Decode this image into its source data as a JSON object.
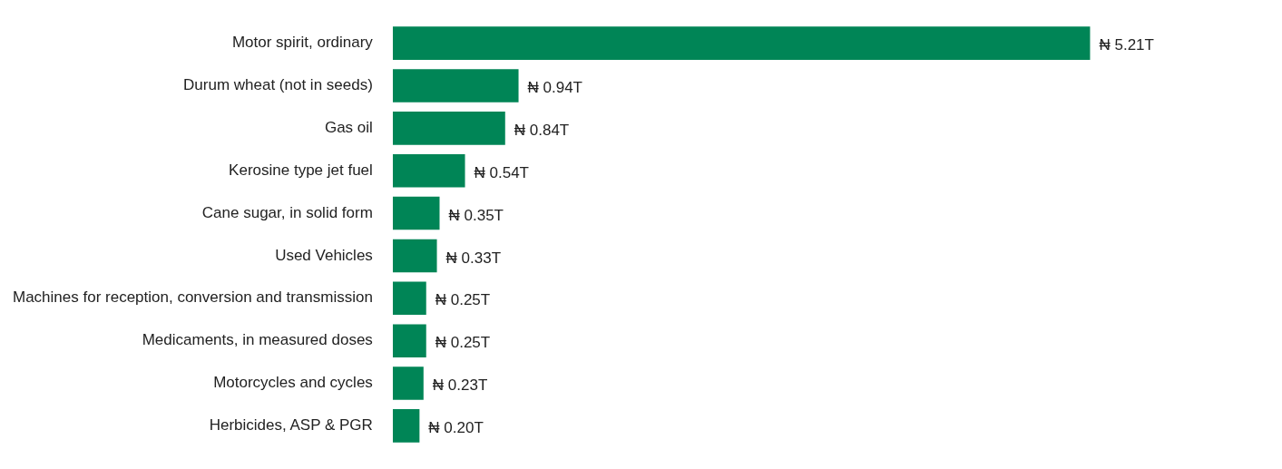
{
  "chart_data": {
    "type": "bar",
    "orientation": "horizontal",
    "categories": [
      "Motor spirit, ordinary",
      "Durum wheat (not in seeds)",
      "Gas oil",
      "Kerosine type jet fuel",
      "Cane sugar, in solid form",
      "Used Vehicles",
      "Machines for reception, conversion and transmission",
      "Medicaments, in measured doses",
      "Motorcycles and cycles",
      "Herbicides, ASP & PGR"
    ],
    "values": [
      5.21,
      0.94,
      0.84,
      0.54,
      0.35,
      0.33,
      0.25,
      0.25,
      0.23,
      0.2
    ],
    "color": "#008556",
    "value_labels": [
      "₦ 5.21T",
      "₦ 0.94T",
      "₦ 0.84T",
      "₦ 0.54T",
      "₦ 0.35T",
      "₦ 0.33T",
      "₦ 0.25T",
      "₦ 0.25T",
      "₦ 0.23T",
      "₦ 0.20T"
    ]
  }
}
